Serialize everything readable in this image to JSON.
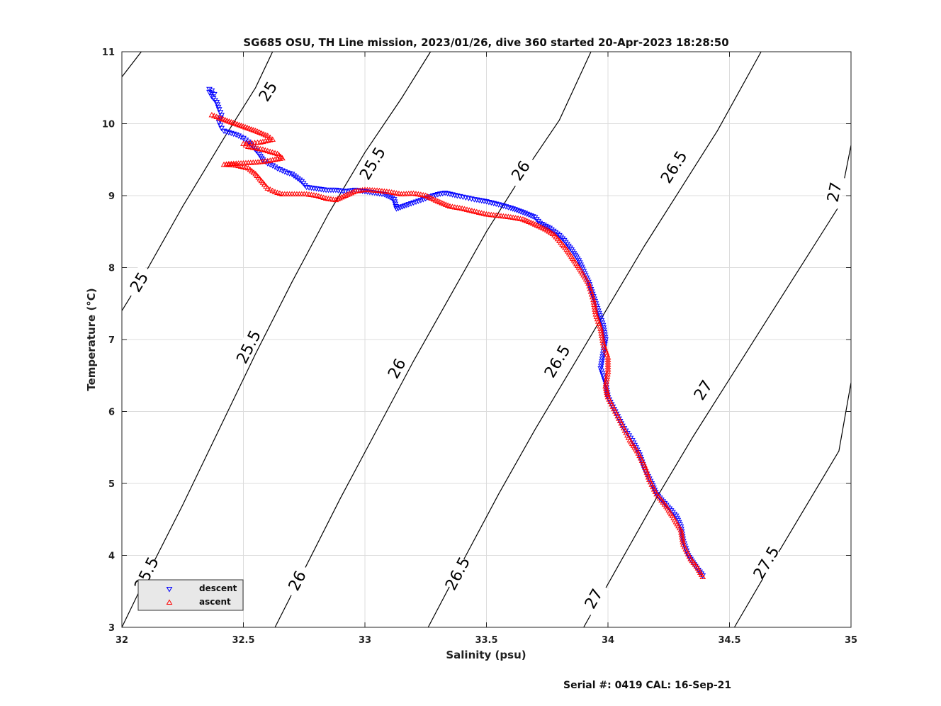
{
  "chart_data": {
    "type": "scatter",
    "title": "SG685 OSU, TH Line mission, 2023/01/26, dive 360 started 20-Apr-2023 18:28:50",
    "xlabel": "Salinity (psu)",
    "ylabel": "Temperature (°C)",
    "xlim": [
      32,
      35
    ],
    "ylim": [
      3,
      11
    ],
    "x_ticks": [
      "32",
      "32.5",
      "33",
      "33.5",
      "34",
      "34.5",
      "35"
    ],
    "y_ticks": [
      "3",
      "4",
      "5",
      "6",
      "7",
      "8",
      "9",
      "10",
      "11"
    ],
    "grid": true,
    "legend_position": "bottom-left",
    "contours": [
      {
        "label": "25",
        "points": [
          [
            32.0,
            10.65
          ],
          [
            32.08,
            11.0
          ]
        ],
        "label_at": []
      },
      {
        "label": "25",
        "points": [
          [
            32.0,
            7.4
          ],
          [
            32.1,
            7.95
          ],
          [
            32.25,
            8.85
          ],
          [
            32.42,
            9.8
          ],
          [
            32.55,
            10.5
          ],
          [
            32.62,
            11.0
          ]
        ],
        "label_at": [
          [
            32.07,
            7.8
          ],
          [
            32.6,
            10.45
          ]
        ]
      },
      {
        "label": "25.5",
        "points": [
          [
            32.0,
            3.0
          ],
          [
            32.1,
            3.7
          ],
          [
            32.25,
            4.7
          ],
          [
            32.4,
            5.75
          ],
          [
            32.55,
            6.8
          ],
          [
            32.7,
            7.8
          ],
          [
            32.85,
            8.75
          ],
          [
            33.0,
            9.6
          ],
          [
            33.15,
            10.35
          ],
          [
            33.27,
            11.0
          ]
        ],
        "label_at": [
          [
            32.1,
            3.75
          ],
          [
            32.52,
            6.9
          ],
          [
            33.03,
            9.45
          ]
        ]
      },
      {
        "label": "26",
        "points": [
          [
            32.63,
            3.0
          ],
          [
            32.75,
            3.8
          ],
          [
            32.9,
            4.8
          ],
          [
            33.05,
            5.75
          ],
          [
            33.2,
            6.7
          ],
          [
            33.35,
            7.6
          ],
          [
            33.5,
            8.5
          ],
          [
            33.65,
            9.3
          ],
          [
            33.8,
            10.05
          ],
          [
            33.93,
            11.0
          ]
        ],
        "label_at": [
          [
            32.72,
            3.65
          ],
          [
            33.13,
            6.6
          ],
          [
            33.64,
            9.35
          ]
        ]
      },
      {
        "label": "26.5",
        "points": [
          [
            33.26,
            3.0
          ],
          [
            33.4,
            3.9
          ],
          [
            33.55,
            4.85
          ],
          [
            33.7,
            5.75
          ],
          [
            33.85,
            6.6
          ],
          [
            34.0,
            7.45
          ],
          [
            34.15,
            8.3
          ],
          [
            34.3,
            9.1
          ],
          [
            34.45,
            9.9
          ],
          [
            34.63,
            11.0
          ]
        ],
        "label_at": [
          [
            33.38,
            3.75
          ],
          [
            33.79,
            6.7
          ],
          [
            34.27,
            9.4
          ]
        ]
      },
      {
        "label": "27",
        "points": [
          [
            33.9,
            3.0
          ],
          [
            34.05,
            3.9
          ],
          [
            34.2,
            4.8
          ],
          [
            34.35,
            5.65
          ],
          [
            34.5,
            6.45
          ],
          [
            34.65,
            7.25
          ],
          [
            34.8,
            8.05
          ],
          [
            34.95,
            8.85
          ],
          [
            35.0,
            9.7
          ]
        ],
        "label_at": [
          [
            33.94,
            3.4
          ],
          [
            34.39,
            6.3
          ],
          [
            34.93,
            9.05
          ]
        ]
      },
      {
        "label": "27.5",
        "points": [
          [
            34.52,
            3.0
          ],
          [
            34.65,
            3.75
          ],
          [
            34.8,
            4.6
          ],
          [
            34.95,
            5.45
          ],
          [
            35.0,
            6.4
          ]
        ],
        "label_at": [
          [
            34.65,
            3.9
          ]
        ]
      }
    ],
    "series": [
      {
        "name": "descent",
        "color": "#0000ff",
        "marker": "triangle-down",
        "points": [
          [
            32.36,
            10.48
          ],
          [
            32.37,
            10.46
          ],
          [
            32.36,
            10.44
          ],
          [
            32.38,
            10.41
          ],
          [
            32.37,
            10.38
          ],
          [
            32.39,
            10.3
          ],
          [
            32.4,
            10.2
          ],
          [
            32.41,
            10.12
          ],
          [
            32.4,
            10.02
          ],
          [
            32.41,
            9.94
          ],
          [
            32.42,
            9.9
          ],
          [
            32.44,
            9.88
          ],
          [
            32.47,
            9.85
          ],
          [
            32.5,
            9.8
          ],
          [
            32.52,
            9.75
          ],
          [
            32.54,
            9.68
          ],
          [
            32.56,
            9.6
          ],
          [
            32.58,
            9.5
          ],
          [
            32.6,
            9.45
          ],
          [
            32.62,
            9.42
          ],
          [
            32.64,
            9.38
          ],
          [
            32.66,
            9.35
          ],
          [
            32.68,
            9.32
          ],
          [
            32.7,
            9.3
          ],
          [
            32.74,
            9.2
          ],
          [
            32.76,
            9.12
          ],
          [
            32.8,
            9.1
          ],
          [
            32.84,
            9.08
          ],
          [
            32.88,
            9.08
          ],
          [
            32.92,
            9.06
          ],
          [
            32.96,
            9.08
          ],
          [
            33.0,
            9.06
          ],
          [
            33.04,
            9.04
          ],
          [
            33.08,
            9.02
          ],
          [
            33.12,
            8.95
          ],
          [
            33.13,
            8.82
          ],
          [
            33.18,
            8.88
          ],
          [
            33.24,
            8.95
          ],
          [
            33.28,
            9.0
          ],
          [
            33.3,
            9.02
          ],
          [
            33.33,
            9.04
          ],
          [
            33.38,
            9.0
          ],
          [
            33.45,
            8.95
          ],
          [
            33.5,
            8.92
          ],
          [
            33.56,
            8.87
          ],
          [
            33.6,
            8.83
          ],
          [
            33.65,
            8.77
          ],
          [
            33.7,
            8.7
          ],
          [
            33.72,
            8.62
          ],
          [
            33.76,
            8.55
          ],
          [
            33.8,
            8.45
          ],
          [
            33.82,
            8.38
          ],
          [
            33.85,
            8.25
          ],
          [
            33.88,
            8.1
          ],
          [
            33.9,
            7.95
          ],
          [
            33.92,
            7.8
          ],
          [
            33.94,
            7.6
          ],
          [
            33.96,
            7.4
          ],
          [
            33.98,
            7.2
          ],
          [
            33.99,
            7.0
          ],
          [
            33.98,
            6.8
          ],
          [
            33.97,
            6.6
          ],
          [
            33.99,
            6.4
          ],
          [
            34.0,
            6.2
          ],
          [
            34.03,
            6.0
          ],
          [
            34.06,
            5.8
          ],
          [
            34.1,
            5.6
          ],
          [
            34.13,
            5.4
          ],
          [
            34.15,
            5.2
          ],
          [
            34.18,
            5.0
          ],
          [
            34.2,
            4.85
          ],
          [
            34.24,
            4.7
          ],
          [
            34.28,
            4.55
          ],
          [
            34.3,
            4.4
          ],
          [
            34.31,
            4.2
          ],
          [
            34.33,
            4.0
          ],
          [
            34.36,
            3.85
          ],
          [
            34.39,
            3.72
          ]
        ]
      },
      {
        "name": "ascent",
        "color": "#ff0000",
        "marker": "triangle-up",
        "points": [
          [
            32.37,
            10.12
          ],
          [
            32.4,
            10.08
          ],
          [
            32.45,
            10.02
          ],
          [
            32.5,
            9.96
          ],
          [
            32.55,
            9.9
          ],
          [
            32.6,
            9.83
          ],
          [
            32.62,
            9.78
          ],
          [
            32.57,
            9.74
          ],
          [
            32.5,
            9.72
          ],
          [
            32.52,
            9.68
          ],
          [
            32.58,
            9.64
          ],
          [
            32.64,
            9.58
          ],
          [
            32.66,
            9.52
          ],
          [
            32.6,
            9.48
          ],
          [
            32.55,
            9.46
          ],
          [
            32.5,
            9.45
          ],
          [
            32.44,
            9.44
          ],
          [
            32.42,
            9.43
          ],
          [
            32.47,
            9.42
          ],
          [
            32.52,
            9.38
          ],
          [
            32.55,
            9.3
          ],
          [
            32.58,
            9.18
          ],
          [
            32.6,
            9.1
          ],
          [
            32.63,
            9.05
          ],
          [
            32.66,
            9.02
          ],
          [
            32.72,
            9.02
          ],
          [
            32.76,
            9.02
          ],
          [
            32.8,
            9.0
          ],
          [
            32.84,
            8.96
          ],
          [
            32.88,
            8.94
          ],
          [
            32.92,
            9.0
          ],
          [
            32.96,
            9.06
          ],
          [
            33.0,
            9.08
          ],
          [
            33.05,
            9.07
          ],
          [
            33.1,
            9.05
          ],
          [
            33.15,
            9.02
          ],
          [
            33.2,
            9.03
          ],
          [
            33.25,
            9.0
          ],
          [
            33.3,
            8.92
          ],
          [
            33.35,
            8.85
          ],
          [
            33.4,
            8.82
          ],
          [
            33.45,
            8.78
          ],
          [
            33.5,
            8.74
          ],
          [
            33.55,
            8.72
          ],
          [
            33.6,
            8.7
          ],
          [
            33.65,
            8.67
          ],
          [
            33.7,
            8.6
          ],
          [
            33.75,
            8.52
          ],
          [
            33.78,
            8.45
          ],
          [
            33.8,
            8.37
          ],
          [
            33.83,
            8.25
          ],
          [
            33.86,
            8.1
          ],
          [
            33.89,
            7.95
          ],
          [
            33.92,
            7.78
          ],
          [
            33.94,
            7.55
          ],
          [
            33.95,
            7.35
          ],
          [
            33.97,
            7.15
          ],
          [
            33.98,
            6.95
          ],
          [
            34.0,
            6.75
          ],
          [
            34.0,
            6.55
          ],
          [
            33.99,
            6.35
          ],
          [
            34.0,
            6.2
          ],
          [
            34.03,
            6.0
          ],
          [
            34.06,
            5.8
          ],
          [
            34.09,
            5.6
          ],
          [
            34.12,
            5.45
          ],
          [
            34.15,
            5.25
          ],
          [
            34.17,
            5.05
          ],
          [
            34.2,
            4.85
          ],
          [
            34.24,
            4.68
          ],
          [
            34.27,
            4.52
          ],
          [
            34.3,
            4.35
          ],
          [
            34.31,
            4.15
          ],
          [
            34.34,
            3.95
          ],
          [
            34.37,
            3.82
          ],
          [
            34.39,
            3.7
          ]
        ]
      }
    ]
  },
  "footer": {
    "serial": "Serial #: 0419  CAL: 16-Sep-21"
  }
}
